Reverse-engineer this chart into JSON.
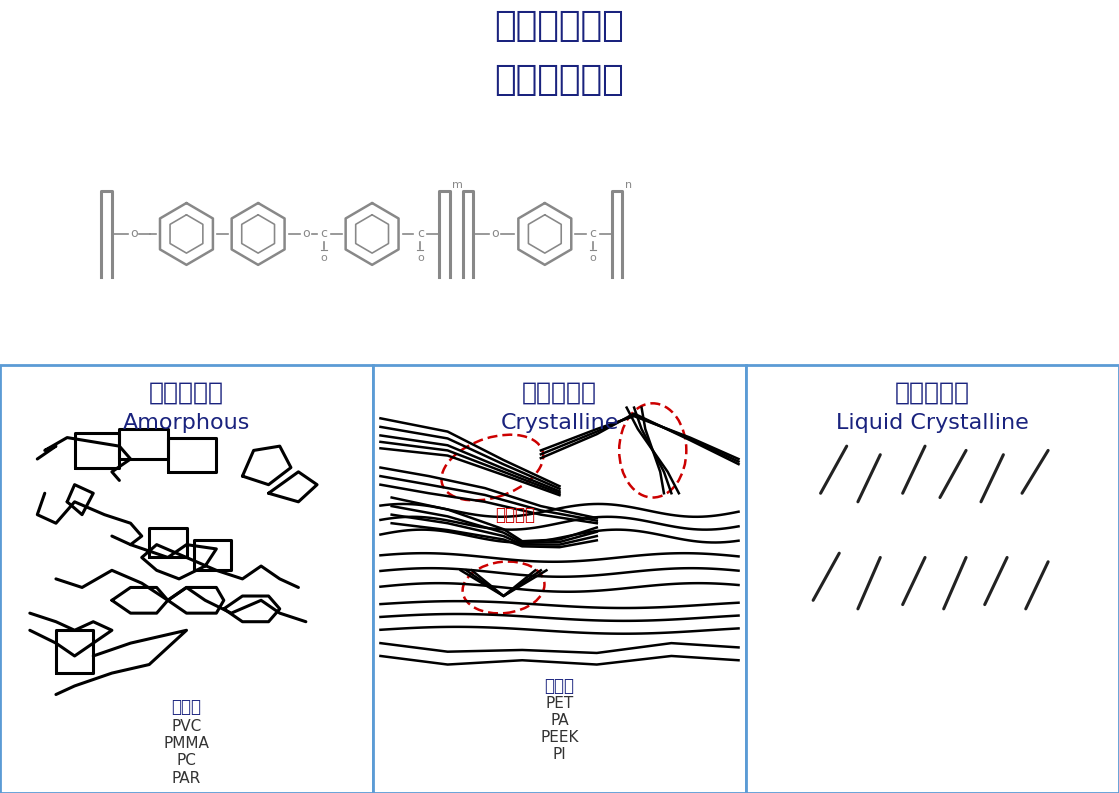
{
  "title_line1": "超级工程塑料",
  "title_line2": "液晶膜構造式",
  "title_color": "#1a237e",
  "title_fontsize": 26,
  "bg_color": "#ffffff",
  "panel_border_color": "#5b9bd5",
  "panel_titles_cn": [
    "非晶性塑料",
    "結晶性塑料",
    "液晶聚合物"
  ],
  "panel_titles_en": [
    "Amorphous",
    "Crystalline",
    "Liquid Crystalline"
  ],
  "panel_title_color": "#1a237e",
  "panel_title_fontsize_cn": 18,
  "panel_title_fontsize_en": 16,
  "examples_left": [
    "【例】",
    "PVC",
    "PMMA",
    "PC",
    "PAR"
  ],
  "examples_mid": [
    "【例】",
    "PET",
    "PA",
    "PEEK",
    "PI"
  ],
  "example_title_color": "#1a237e",
  "example_body_color": "#333333",
  "crystalline_label": "結晶組織",
  "crystalline_label_color": "#cc0000",
  "lcp_line_color": "#222222",
  "chem_color": "#888888"
}
